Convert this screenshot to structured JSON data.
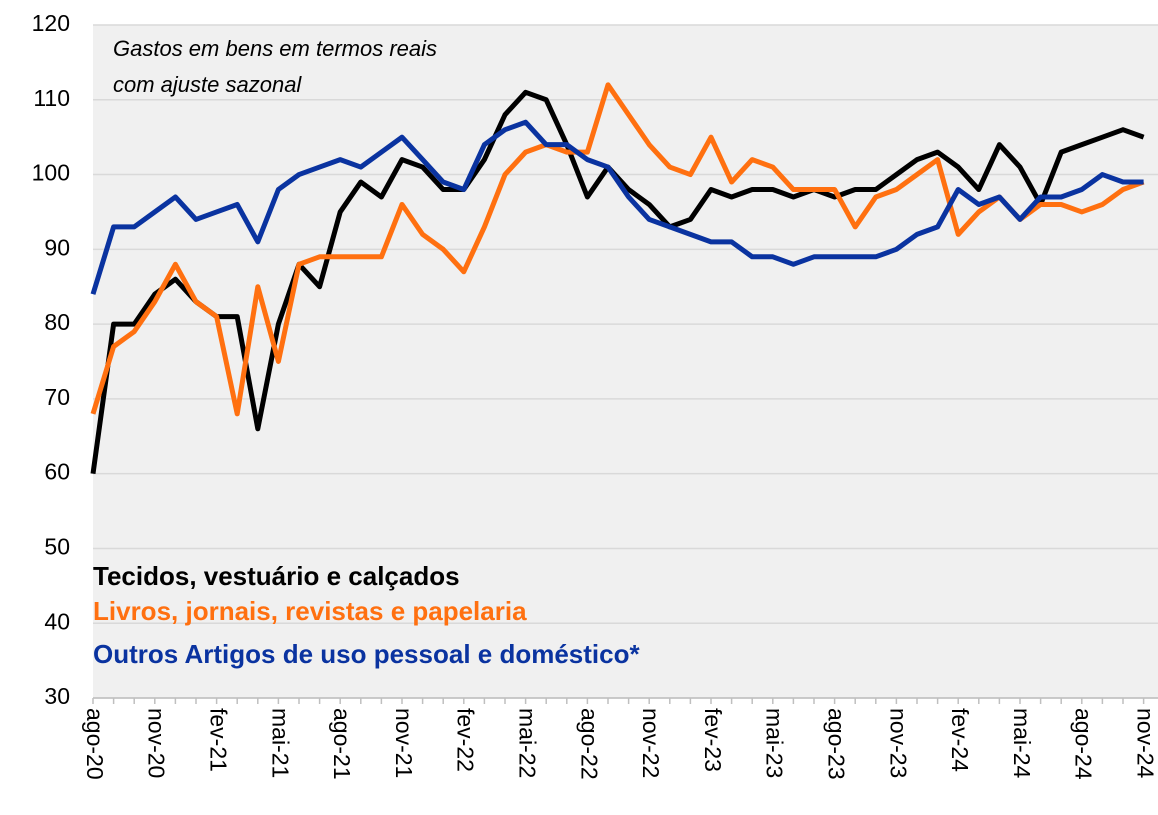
{
  "chart_data": {
    "type": "line",
    "annotation": [
      "Gastos em bens em termos reais",
      "com ajuste sazonal"
    ],
    "categories": [
      "ago-20",
      null,
      null,
      "nov-20",
      null,
      null,
      "fev-21",
      null,
      null,
      "mai-21",
      null,
      null,
      "ago-21",
      null,
      null,
      "nov-21",
      null,
      null,
      "fev-22",
      null,
      null,
      "mai-22",
      null,
      null,
      "ago-22",
      null,
      null,
      "nov-22",
      null,
      null,
      "fev-23",
      null,
      null,
      "mai-23",
      null,
      null,
      "ago-23",
      null,
      null,
      "nov-23",
      null,
      null,
      "fev-24",
      null,
      null,
      "mai-24",
      null,
      null,
      "ago-24",
      null,
      null,
      "nov-24"
    ],
    "series": [
      {
        "name": "Tecidos, vestuário e calçados",
        "color": "#000000",
        "values": [
          60,
          80,
          80,
          84,
          86,
          83,
          81,
          81,
          66,
          80,
          88,
          85,
          95,
          99,
          97,
          102,
          101,
          98,
          98,
          102,
          108,
          111,
          110,
          104,
          97,
          101,
          98,
          96,
          93,
          94,
          98,
          97,
          98,
          98,
          97,
          98,
          97,
          98,
          98,
          100,
          102,
          103,
          101,
          98,
          104,
          101,
          96,
          103,
          104,
          105,
          106,
          105
        ]
      },
      {
        "name": "Livros, jornais, revistas e papelaria",
        "color": "#ff7010",
        "values": [
          68,
          77,
          79,
          83,
          88,
          83,
          81,
          68,
          85,
          75,
          88,
          89,
          89,
          89,
          89,
          96,
          92,
          90,
          87,
          93,
          100,
          103,
          104,
          103,
          103,
          112,
          108,
          104,
          101,
          100,
          105,
          99,
          102,
          101,
          98,
          98,
          98,
          93,
          97,
          98,
          100,
          102,
          92,
          95,
          97,
          94,
          96,
          96,
          95,
          96,
          98,
          99
        ]
      },
      {
        "name": "Outros Artigos de uso pessoal e doméstico*",
        "color": "#0a33a0",
        "values": [
          84,
          93,
          93,
          95,
          97,
          94,
          95,
          96,
          91,
          98,
          100,
          101,
          102,
          101,
          103,
          105,
          102,
          99,
          98,
          104,
          106,
          107,
          104,
          104,
          102,
          101,
          97,
          94,
          93,
          92,
          91,
          91,
          89,
          89,
          88,
          89,
          89,
          89,
          89,
          90,
          92,
          93,
          98,
          96,
          97,
          94,
          97,
          97,
          98,
          100,
          99,
          99
        ]
      }
    ],
    "ylim": [
      30,
      120
    ],
    "yticks": [
      30,
      40,
      50,
      60,
      70,
      80,
      90,
      100,
      110,
      120
    ],
    "grid": true
  }
}
